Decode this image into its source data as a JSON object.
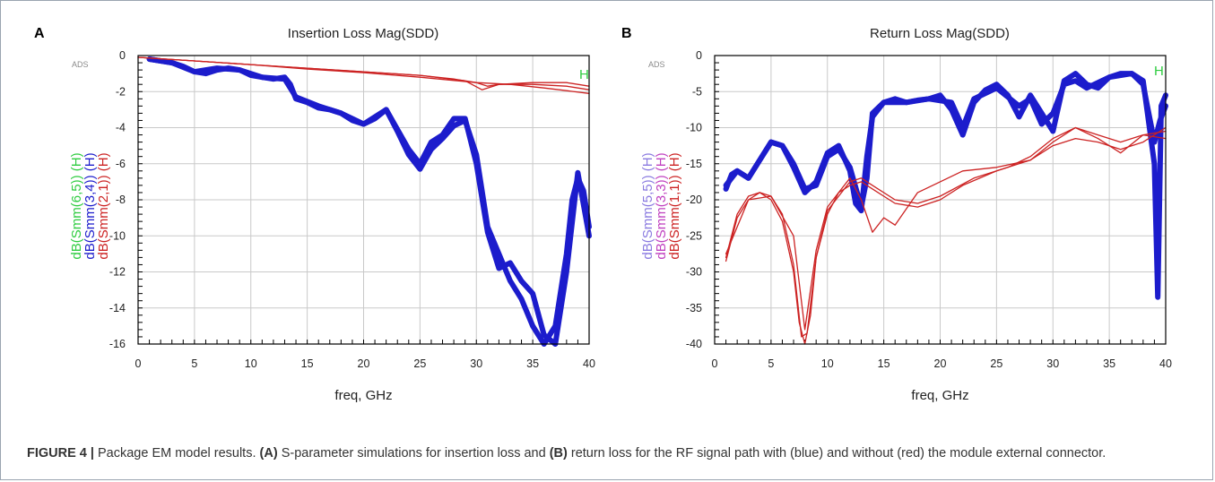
{
  "figure": {
    "caption_label": "FIGURE 4 |",
    "caption_intro": " Package EM model results. ",
    "caption_a": "(A)",
    "caption_mid": " S-parameter simulations for insertion loss and ",
    "caption_b": "(B)",
    "caption_rest": " return loss for the RF signal path with (blue) and without (red) the module external connector."
  },
  "chart_data": [
    {
      "type": "line",
      "panel_letter": "A",
      "title": "Insertion Loss Mag(SDD)",
      "watermark": "ADS",
      "marker_label": "H",
      "xlabel": "freq, GHz",
      "ylabel_entries": [
        {
          "text": "dB(Smm(6,5)) (H)",
          "color": "#2ecc40"
        },
        {
          "text": "dB(Smm(3,4)) (H)",
          "color": "#1c1ccc"
        },
        {
          "text": "dB(Smm(2,1)) (H)",
          "color": "#cc2222"
        }
      ],
      "xlim": [
        0,
        40
      ],
      "ylim": [
        -16,
        0
      ],
      "xticks": [
        0,
        5,
        10,
        15,
        20,
        25,
        30,
        35,
        40
      ],
      "yticks": [
        0,
        -2,
        -4,
        -6,
        -8,
        -10,
        -12,
        -14,
        -16
      ],
      "grid": true,
      "series": [
        {
          "color": "#1c1ccc",
          "width": 6,
          "x": [
            1,
            2,
            3,
            4,
            5,
            6,
            7,
            8,
            9,
            10,
            11,
            12,
            13,
            13.5,
            14,
            15,
            16,
            17,
            18,
            19,
            20,
            21,
            22,
            23,
            24,
            25,
            26,
            27,
            28,
            29,
            30,
            31,
            32,
            33,
            34,
            35,
            36,
            37,
            38,
            38.5,
            39,
            39.5,
            40
          ],
          "y": [
            -0.2,
            -0.3,
            -0.4,
            -0.6,
            -0.9,
            -1.0,
            -0.8,
            -0.7,
            -0.8,
            -1.1,
            -1.2,
            -1.3,
            -1.2,
            -1.6,
            -2.4,
            -2.6,
            -2.9,
            -3.0,
            -3.2,
            -3.6,
            -3.8,
            -3.5,
            -3.0,
            -4.2,
            -5.5,
            -6.3,
            -5.2,
            -4.6,
            -3.9,
            -3.6,
            -5.5,
            -9.5,
            -11.0,
            -12.5,
            -13.5,
            -15.0,
            -16.0,
            -15.0,
            -11.0,
            -8.0,
            -6.8,
            -7.5,
            -9.5
          ]
        },
        {
          "color": "#1c1ccc",
          "width": 6,
          "x": [
            1,
            3,
            5,
            7,
            9,
            11,
            13,
            14,
            16,
            18,
            20,
            22,
            24,
            25,
            26,
            27,
            28,
            29,
            30,
            31,
            32,
            33,
            34,
            35,
            36,
            37,
            38,
            39,
            40
          ],
          "y": [
            -0.2,
            -0.4,
            -0.9,
            -0.7,
            -0.8,
            -1.2,
            -1.3,
            -2.3,
            -2.8,
            -3.2,
            -3.8,
            -3.0,
            -5.2,
            -6.0,
            -4.8,
            -4.4,
            -3.5,
            -3.5,
            -6.0,
            -9.8,
            -11.8,
            -11.5,
            -12.5,
            -13.2,
            -15.5,
            -16.0,
            -12.0,
            -6.5,
            -10.0
          ]
        },
        {
          "color": "#cc2222",
          "width": 1.3,
          "x": [
            0,
            5,
            10,
            15,
            20,
            25,
            28,
            30,
            31,
            32,
            35,
            38,
            40
          ],
          "y": [
            -0.1,
            -0.3,
            -0.5,
            -0.7,
            -0.9,
            -1.1,
            -1.3,
            -1.5,
            -1.7,
            -1.6,
            -1.6,
            -1.7,
            -1.9
          ]
        },
        {
          "color": "#cc2222",
          "width": 1.3,
          "x": [
            0,
            5,
            10,
            15,
            20,
            25,
            30,
            33,
            36,
            38,
            40
          ],
          "y": [
            -0.1,
            -0.3,
            -0.5,
            -0.75,
            -0.95,
            -1.2,
            -1.5,
            -1.6,
            -1.8,
            -1.95,
            -2.1
          ]
        },
        {
          "color": "#cc2222",
          "width": 1.3,
          "x": [
            0,
            5,
            10,
            15,
            20,
            25,
            29,
            30.5,
            32,
            35,
            38,
            40
          ],
          "y": [
            -0.1,
            -0.3,
            -0.5,
            -0.7,
            -0.9,
            -1.1,
            -1.4,
            -1.9,
            -1.6,
            -1.5,
            -1.5,
            -1.7
          ]
        }
      ]
    },
    {
      "type": "line",
      "panel_letter": "B",
      "title": "Return Loss Mag(SDD)",
      "watermark": "ADS",
      "marker_label": "H",
      "xlabel": "freq, GHz",
      "ylabel_entries": [
        {
          "text": "dB(Smm(5,5)) (H)",
          "color": "#8a7ae0"
        },
        {
          "text": "dB(Smm(3,3)) (H)",
          "color": "#c040c0"
        },
        {
          "text": "dB(Smm(1,1)) (H)",
          "color": "#cc2222"
        }
      ],
      "xlim": [
        0,
        40
      ],
      "ylim": [
        -40,
        0
      ],
      "xticks": [
        0,
        5,
        10,
        15,
        20,
        25,
        30,
        35,
        40
      ],
      "yticks": [
        0,
        -5,
        -10,
        -15,
        -20,
        -25,
        -30,
        -35,
        -40
      ],
      "grid": true,
      "series": [
        {
          "color": "#1c1ccc",
          "width": 6,
          "x": [
            1,
            1.5,
            2,
            3,
            4,
            5,
            6,
            7,
            8,
            9,
            10,
            11,
            12,
            12.5,
            13,
            13.5,
            14,
            15,
            16,
            17,
            18,
            19,
            20,
            21,
            22,
            23,
            24,
            25,
            26,
            27,
            28,
            29,
            30,
            31,
            32,
            33,
            34,
            35,
            36,
            37,
            38,
            39,
            39.3,
            39.6,
            40
          ],
          "y": [
            -18.5,
            -16.5,
            -16.0,
            -17.0,
            -14.5,
            -12.0,
            -12.5,
            -15.5,
            -19.0,
            -17.5,
            -13.5,
            -12.5,
            -16.0,
            -20.5,
            -21.5,
            -14.0,
            -8.5,
            -6.5,
            -6.0,
            -6.5,
            -6.2,
            -6.0,
            -5.5,
            -7.5,
            -11.0,
            -6.5,
            -4.8,
            -4.0,
            -5.5,
            -8.5,
            -5.5,
            -8.0,
            -10.5,
            -3.5,
            -2.5,
            -4.0,
            -4.5,
            -3.0,
            -2.5,
            -2.5,
            -3.5,
            -15.0,
            -33.5,
            -7.0,
            -5.5
          ]
        },
        {
          "color": "#1c1ccc",
          "width": 6,
          "x": [
            1,
            2,
            3,
            4,
            5,
            6,
            7,
            8,
            9,
            10,
            11,
            12,
            13,
            13.5,
            14,
            15,
            17,
            19,
            21,
            22,
            23,
            25,
            27,
            28,
            29,
            30,
            31,
            32,
            33,
            35,
            37,
            38,
            39,
            39.5,
            40
          ],
          "y": [
            -18.0,
            -16.0,
            -17.0,
            -14.5,
            -12.0,
            -12.5,
            -15.0,
            -18.5,
            -18.0,
            -14.0,
            -13.0,
            -15.5,
            -21.0,
            -17.0,
            -8.0,
            -6.5,
            -6.5,
            -6.0,
            -6.5,
            -10.0,
            -6.0,
            -4.5,
            -7.0,
            -6.0,
            -9.5,
            -8.0,
            -4.0,
            -3.5,
            -4.5,
            -3.0,
            -2.5,
            -4.0,
            -12.0,
            -9.0,
            -7.0
          ]
        },
        {
          "color": "#cc2222",
          "width": 1.3,
          "x": [
            1,
            2,
            3,
            4,
            5,
            6,
            7,
            7.5,
            8,
            8.5,
            9,
            10,
            11,
            12,
            13,
            14,
            15,
            16,
            18,
            20,
            22,
            25,
            28,
            30,
            32,
            34,
            36,
            38,
            40
          ],
          "y": [
            -28.0,
            -22.0,
            -19.5,
            -19.0,
            -20.0,
            -23.0,
            -30.0,
            -37.0,
            -40.0,
            -36.0,
            -28.0,
            -22.0,
            -19.0,
            -18.0,
            -17.5,
            -18.5,
            -19.5,
            -20.5,
            -21.0,
            -20.0,
            -18.0,
            -16.0,
            -14.5,
            -12.5,
            -11.5,
            -12.0,
            -13.0,
            -12.0,
            -10.0
          ]
        },
        {
          "color": "#cc2222",
          "width": 1.3,
          "x": [
            1,
            2,
            3,
            4,
            5,
            6,
            7,
            7.7,
            8.2,
            9,
            10,
            11,
            12,
            13,
            14,
            16,
            18,
            20,
            23,
            26,
            28,
            30,
            32,
            34,
            36,
            38,
            40
          ],
          "y": [
            -28.5,
            -22.5,
            -20.0,
            -19.0,
            -19.5,
            -22.0,
            -29.0,
            -39.0,
            -38.5,
            -28.0,
            -21.5,
            -19.5,
            -17.5,
            -17.0,
            -18.0,
            -20.0,
            -20.5,
            -19.5,
            -17.0,
            -15.5,
            -14.0,
            -11.5,
            -10.0,
            -11.0,
            -12.0,
            -11.0,
            -10.5
          ]
        },
        {
          "color": "#cc2222",
          "width": 1.3,
          "x": [
            1,
            3,
            5,
            7,
            8,
            9,
            10,
            11,
            12,
            13,
            14,
            15,
            16,
            18,
            20,
            22,
            25,
            28,
            30,
            32,
            34,
            36,
            38,
            40
          ],
          "y": [
            -27.5,
            -20.0,
            -19.5,
            -25.0,
            -38.0,
            -27.0,
            -21.0,
            -19.0,
            -17.0,
            -20.0,
            -24.5,
            -22.5,
            -23.5,
            -19.0,
            -17.5,
            -16.0,
            -15.5,
            -14.5,
            -12.0,
            -10.0,
            -11.5,
            -13.5,
            -11.0,
            -11.5
          ]
        }
      ]
    }
  ]
}
